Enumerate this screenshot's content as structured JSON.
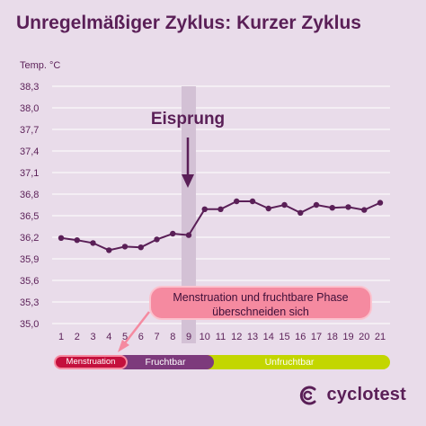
{
  "title": "Unregelmäßiger Zyklus: Kurzer Zyklus",
  "callout": {
    "line1": "Menstruation und fruchtbare Phase",
    "line2": "überschneiden sich"
  },
  "phases": {
    "menstruation": "Menstruation",
    "fruchtbar": "Fruchtbar",
    "unfruchtbar": "Unfruchtbar"
  },
  "logo": "cyclotest",
  "colors": {
    "background": "#e9dcea",
    "line": "#5a1f57",
    "accent_pink": "#f58aa0",
    "menstruation": "#c4103d",
    "fertile": "#7d3a7c",
    "infertile": "#c3d600"
  },
  "chart_data": {
    "type": "line",
    "ylabel": "Temp. °C",
    "ylim": [
      35.0,
      38.3
    ],
    "yticks": [
      "38,3",
      "38,0",
      "37,7",
      "37,4",
      "37,1",
      "36,8",
      "36,5",
      "36,2",
      "35,9",
      "35,6",
      "35,3",
      "35,0"
    ],
    "ytick_values": [
      38.3,
      38.0,
      37.7,
      37.4,
      37.1,
      36.8,
      36.5,
      36.2,
      35.9,
      35.6,
      35.3,
      35.0
    ],
    "categories": [
      "1",
      "2",
      "3",
      "4",
      "5",
      "6",
      "7",
      "8",
      "9",
      "10",
      "11",
      "12",
      "13",
      "14",
      "15",
      "16",
      "17",
      "18",
      "19",
      "20",
      "21"
    ],
    "values": [
      36.19,
      36.16,
      36.12,
      36.02,
      36.07,
      36.06,
      36.17,
      36.25,
      36.23,
      36.59,
      36.59,
      36.7,
      36.7,
      36.6,
      36.65,
      36.54,
      36.65,
      36.61,
      36.62,
      36.58,
      36.68
    ],
    "ovulation_day": 9,
    "ovulation_label": "Eisprung",
    "grid": true
  }
}
